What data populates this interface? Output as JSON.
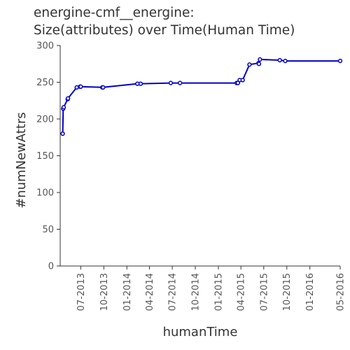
{
  "chart_data": {
    "type": "line",
    "title_lines": [
      "energine-cmf__energine:",
      "Size(attributes) over Time(Human Time)"
    ],
    "xlabel": "humanTime",
    "ylabel": "#numNewAttrs",
    "ylim": [
      0,
      300
    ],
    "yticks": [
      0,
      50,
      100,
      150,
      200,
      250,
      300
    ],
    "xlim": [
      "2013-04-10",
      "2016-05-01"
    ],
    "xticks": [
      {
        "date": "2013-07-01",
        "label": "07-2013"
      },
      {
        "date": "2013-10-01",
        "label": "10-2013"
      },
      {
        "date": "2014-01-01",
        "label": "01-2014"
      },
      {
        "date": "2014-04-01",
        "label": "04-2014"
      },
      {
        "date": "2014-07-01",
        "label": "07-2014"
      },
      {
        "date": "2014-10-01",
        "label": "10-2014"
      },
      {
        "date": "2015-01-01",
        "label": "01-2015"
      },
      {
        "date": "2015-04-01",
        "label": "04-2015"
      },
      {
        "date": "2015-07-01",
        "label": "07-2015"
      },
      {
        "date": "2015-10-01",
        "label": "10-2015"
      },
      {
        "date": "2016-01-01",
        "label": "01-2016"
      },
      {
        "date": "2016-05-01",
        "label": "05-2016"
      }
    ],
    "grid": false,
    "line_color": "#0000cc",
    "series": [
      {
        "points": [
          {
            "x": "2013-04-20",
            "y": 180
          },
          {
            "x": "2013-04-22",
            "y": 214
          },
          {
            "x": "2013-04-24",
            "y": 216
          },
          {
            "x": "2013-05-10",
            "y": 227
          },
          {
            "x": "2013-05-11",
            "y": 228
          },
          {
            "x": "2013-06-15",
            "y": 243
          },
          {
            "x": "2013-06-28",
            "y": 244
          },
          {
            "x": "2013-07-01",
            "y": 244
          },
          {
            "x": "2013-09-25",
            "y": 243
          },
          {
            "x": "2013-09-28",
            "y": 243
          },
          {
            "x": "2014-02-12",
            "y": 248
          },
          {
            "x": "2014-02-25",
            "y": 248
          },
          {
            "x": "2014-06-25",
            "y": 249
          },
          {
            "x": "2014-08-01",
            "y": 249
          },
          {
            "x": "2015-03-15",
            "y": 249
          },
          {
            "x": "2015-03-20",
            "y": 249
          },
          {
            "x": "2015-03-27",
            "y": 253
          },
          {
            "x": "2015-04-08",
            "y": 253
          },
          {
            "x": "2015-05-05",
            "y": 274
          },
          {
            "x": "2015-06-10",
            "y": 276
          },
          {
            "x": "2015-06-12",
            "y": 275
          },
          {
            "x": "2015-06-16",
            "y": 281
          },
          {
            "x": "2015-09-03",
            "y": 280
          },
          {
            "x": "2015-09-25",
            "y": 279
          },
          {
            "x": "2016-05-01",
            "y": 279
          }
        ]
      }
    ]
  }
}
